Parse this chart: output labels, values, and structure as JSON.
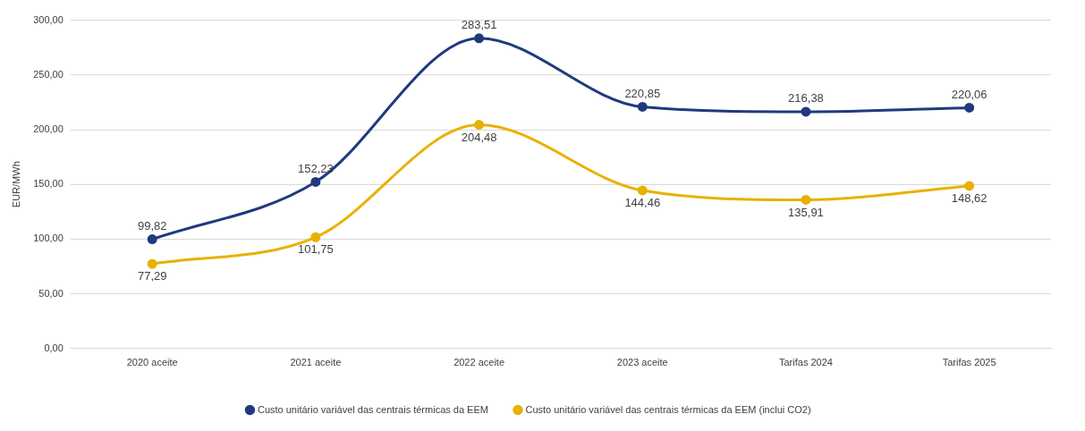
{
  "chart_data": {
    "type": "line",
    "ylabel": "EUR/MWh",
    "categories": [
      "2020 aceite",
      "2021 aceite",
      "2022 aceite",
      "2023 aceite",
      "Tarifas 2024",
      "Tarifas 2025"
    ],
    "series": [
      {
        "name": "Custo unitário variável das centrais térmicas da EEM",
        "color": "#203a7e",
        "values": [
          99.82,
          152.23,
          283.51,
          220.85,
          216.38,
          220.06
        ],
        "value_labels": [
          "99,82",
          "152,23",
          "283,51",
          "220,85",
          "216,38",
          "220,06"
        ]
      },
      {
        "name": "Custo unitário variável das centrais térmicas da EEM (inclui CO2)",
        "color": "#e8b100",
        "values": [
          77.29,
          101.75,
          204.48,
          144.46,
          135.91,
          148.62
        ],
        "value_labels": [
          "77,29",
          "101,75",
          "204,48",
          "144,46",
          "135,91",
          "148,62"
        ]
      }
    ],
    "ylim": [
      0,
      300
    ],
    "yticks": [
      {
        "value": 0,
        "label": "0,00"
      },
      {
        "value": 50,
        "label": "50,00"
      },
      {
        "value": 100,
        "label": "100,00"
      },
      {
        "value": 150,
        "label": "150,00"
      },
      {
        "value": 200,
        "label": "200,00"
      },
      {
        "value": 250,
        "label": "250,00"
      },
      {
        "value": 300,
        "label": "300,00"
      }
    ],
    "grid": "y",
    "legend": "bottom",
    "marker": "circle",
    "line_style": "solid"
  }
}
